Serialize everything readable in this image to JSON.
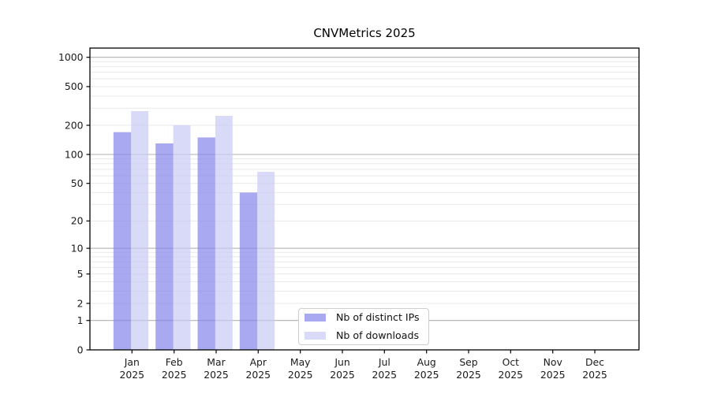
{
  "figure": {
    "background": "#ffffff",
    "frame_color": "#000000",
    "text_color": "#1a1a1a"
  },
  "chart_data": {
    "type": "bar",
    "title": "CNVMetrics 2025",
    "categories": [
      "Jan",
      "Feb",
      "Mar",
      "Apr",
      "May",
      "Jun",
      "Jul",
      "Aug",
      "Sep",
      "Oct",
      "Nov",
      "Dec"
    ],
    "category_year": "2025",
    "series": [
      {
        "name": "Nb of distinct IPs",
        "color": "#a9a9f1",
        "values": [
          170,
          130,
          150,
          40,
          0,
          0,
          0,
          0,
          0,
          0,
          0,
          0
        ]
      },
      {
        "name": "Nb of downloads",
        "color": "#d9d9f8",
        "values": [
          280,
          200,
          250,
          66,
          0,
          0,
          0,
          0,
          0,
          0,
          0,
          0
        ]
      }
    ],
    "y_axis": {
      "scale": "log1p",
      "ticks": [
        0,
        1,
        2,
        5,
        10,
        20,
        50,
        100,
        200,
        500,
        1000
      ],
      "max_tick": 1000
    },
    "grid": {
      "major_at": [
        1,
        10,
        100,
        1000
      ],
      "major_color": "#b0b0b0",
      "minor_color": "#e9e9e9"
    },
    "legend": {
      "position": "lower center"
    }
  }
}
